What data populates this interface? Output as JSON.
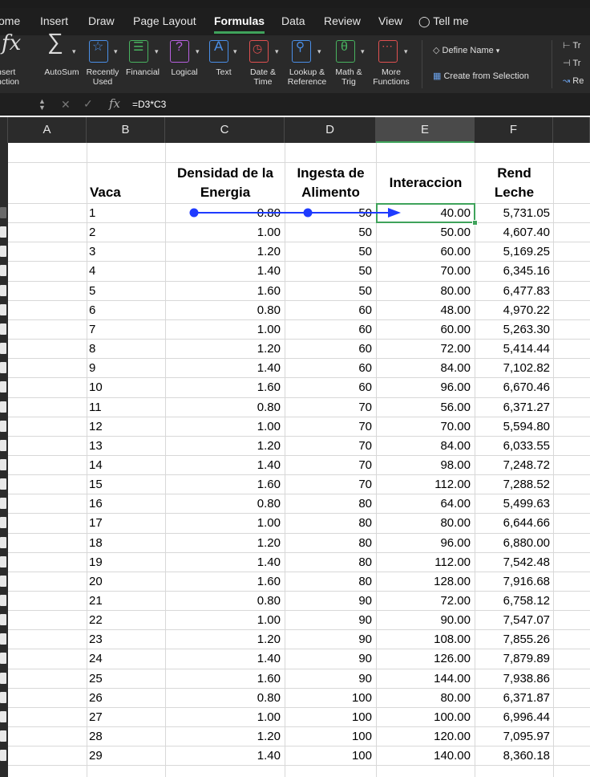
{
  "tabs": [
    "ome",
    "Insert",
    "Draw",
    "Page Layout",
    "Formulas",
    "Data",
    "Review",
    "View"
  ],
  "tell_me": "Tell me",
  "ribbon": {
    "insert_function": [
      "nsert",
      "nction"
    ],
    "buttons": [
      {
        "line1": "AutoSum",
        "line2": ""
      },
      {
        "line1": "Recently",
        "line2": "Used"
      },
      {
        "line1": "Financial",
        "line2": ""
      },
      {
        "line1": "Logical",
        "line2": ""
      },
      {
        "line1": "Text",
        "line2": ""
      },
      {
        "line1": "Date &",
        "line2": "Time"
      },
      {
        "line1": "Lookup &",
        "line2": "Reference"
      },
      {
        "line1": "Math &",
        "line2": "Trig"
      },
      {
        "line1": "More",
        "line2": "Functions"
      }
    ],
    "define_name": "Define Name",
    "create_from_selection": "Create from Selection",
    "right_cut": [
      "Tr",
      "Tr",
      "Re"
    ]
  },
  "formula_bar": {
    "fx": "fx",
    "formula": "=D3*C3"
  },
  "columns": [
    "A",
    "B",
    "C",
    "D",
    "E",
    "F",
    "("
  ],
  "headers": {
    "b": "Vaca",
    "c": [
      "Densidad de la",
      "Energia"
    ],
    "d": [
      "Ingesta de",
      "Alimento"
    ],
    "e": "Interaccion",
    "f": [
      "Rend",
      "Leche"
    ]
  },
  "rows": [
    [
      "1",
      "0.80",
      "50",
      "40.00",
      "5,731.05"
    ],
    [
      "2",
      "1.00",
      "50",
      "50.00",
      "4,607.40"
    ],
    [
      "3",
      "1.20",
      "50",
      "60.00",
      "5,169.25"
    ],
    [
      "4",
      "1.40",
      "50",
      "70.00",
      "6,345.16"
    ],
    [
      "5",
      "1.60",
      "50",
      "80.00",
      "6,477.83"
    ],
    [
      "6",
      "0.80",
      "60",
      "48.00",
      "4,970.22"
    ],
    [
      "7",
      "1.00",
      "60",
      "60.00",
      "5,263.30"
    ],
    [
      "8",
      "1.20",
      "60",
      "72.00",
      "5,414.44"
    ],
    [
      "9",
      "1.40",
      "60",
      "84.00",
      "7,102.82"
    ],
    [
      "10",
      "1.60",
      "60",
      "96.00",
      "6,670.46"
    ],
    [
      "11",
      "0.80",
      "70",
      "56.00",
      "6,371.27"
    ],
    [
      "12",
      "1.00",
      "70",
      "70.00",
      "5,594.80"
    ],
    [
      "13",
      "1.20",
      "70",
      "84.00",
      "6,033.55"
    ],
    [
      "14",
      "1.40",
      "70",
      "98.00",
      "7,248.72"
    ],
    [
      "15",
      "1.60",
      "70",
      "112.00",
      "7,288.52"
    ],
    [
      "16",
      "0.80",
      "80",
      "64.00",
      "5,499.63"
    ],
    [
      "17",
      "1.00",
      "80",
      "80.00",
      "6,644.66"
    ],
    [
      "18",
      "1.20",
      "80",
      "96.00",
      "6,880.00"
    ],
    [
      "19",
      "1.40",
      "80",
      "112.00",
      "7,542.48"
    ],
    [
      "20",
      "1.60",
      "80",
      "128.00",
      "7,916.68"
    ],
    [
      "21",
      "0.80",
      "90",
      "72.00",
      "6,758.12"
    ],
    [
      "22",
      "1.00",
      "90",
      "90.00",
      "7,547.07"
    ],
    [
      "23",
      "1.20",
      "90",
      "108.00",
      "7,855.26"
    ],
    [
      "24",
      "1.40",
      "90",
      "126.00",
      "7,879.89"
    ],
    [
      "25",
      "1.60",
      "90",
      "144.00",
      "7,938.86"
    ],
    [
      "26",
      "0.80",
      "100",
      "80.00",
      "6,371.87"
    ],
    [
      "27",
      "1.00",
      "100",
      "100.00",
      "6,996.44"
    ],
    [
      "28",
      "1.20",
      "100",
      "120.00",
      "7,095.97"
    ],
    [
      "29",
      "1.40",
      "100",
      "140.00",
      "8,360.18"
    ]
  ],
  "colors": {
    "accent": "#3fa35b",
    "trace": "#1f3bff"
  }
}
